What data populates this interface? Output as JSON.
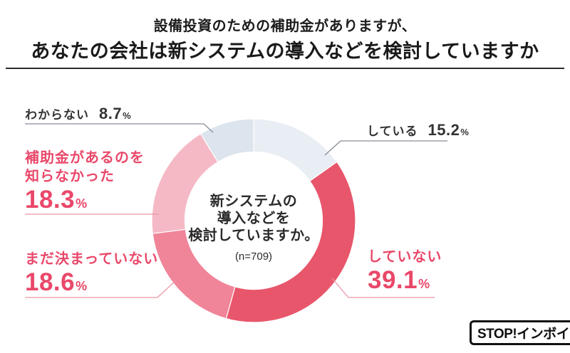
{
  "title": {
    "line1": "設備投資のための補助金がありますが、",
    "line2": "あなたの会社は新システムの導入などを検討していますか"
  },
  "center": {
    "line1": "新システムの",
    "line2": "導入などを",
    "line3": "検討していますか。",
    "sample": "(n=709)"
  },
  "percent_sign": "%",
  "logo": {
    "text": "STOP!インボイス"
  },
  "chart_data": {
    "type": "pie",
    "subtype": "donut",
    "title": "設備投資のための補助金がありますが、あなたの会社は新システムの導入などを検討していますか",
    "center_label": "新システムの導入などを検討していますか。",
    "sample_size": "n=709",
    "unit": "%",
    "start_angle": "top, clockwise",
    "legend_position": "callout-labels",
    "segments": [
      {
        "label": "している",
        "value": 15.2,
        "color": "#e9eef4",
        "label_color": "#333333"
      },
      {
        "label": "していない",
        "value": 39.1,
        "color": "#e8566b",
        "label_color": "#e9486a"
      },
      {
        "label": "まだ決まっていない",
        "value": 18.6,
        "color": "#f08498",
        "label_color": "#e9486a"
      },
      {
        "label": "補助金があるのを知らなかった",
        "value": 18.3,
        "color": "#f5b9c5",
        "label_color": "#e9486a"
      },
      {
        "label": "わからない",
        "value": 8.7,
        "color": "#dce4ed",
        "label_color": "#333333"
      }
    ]
  }
}
